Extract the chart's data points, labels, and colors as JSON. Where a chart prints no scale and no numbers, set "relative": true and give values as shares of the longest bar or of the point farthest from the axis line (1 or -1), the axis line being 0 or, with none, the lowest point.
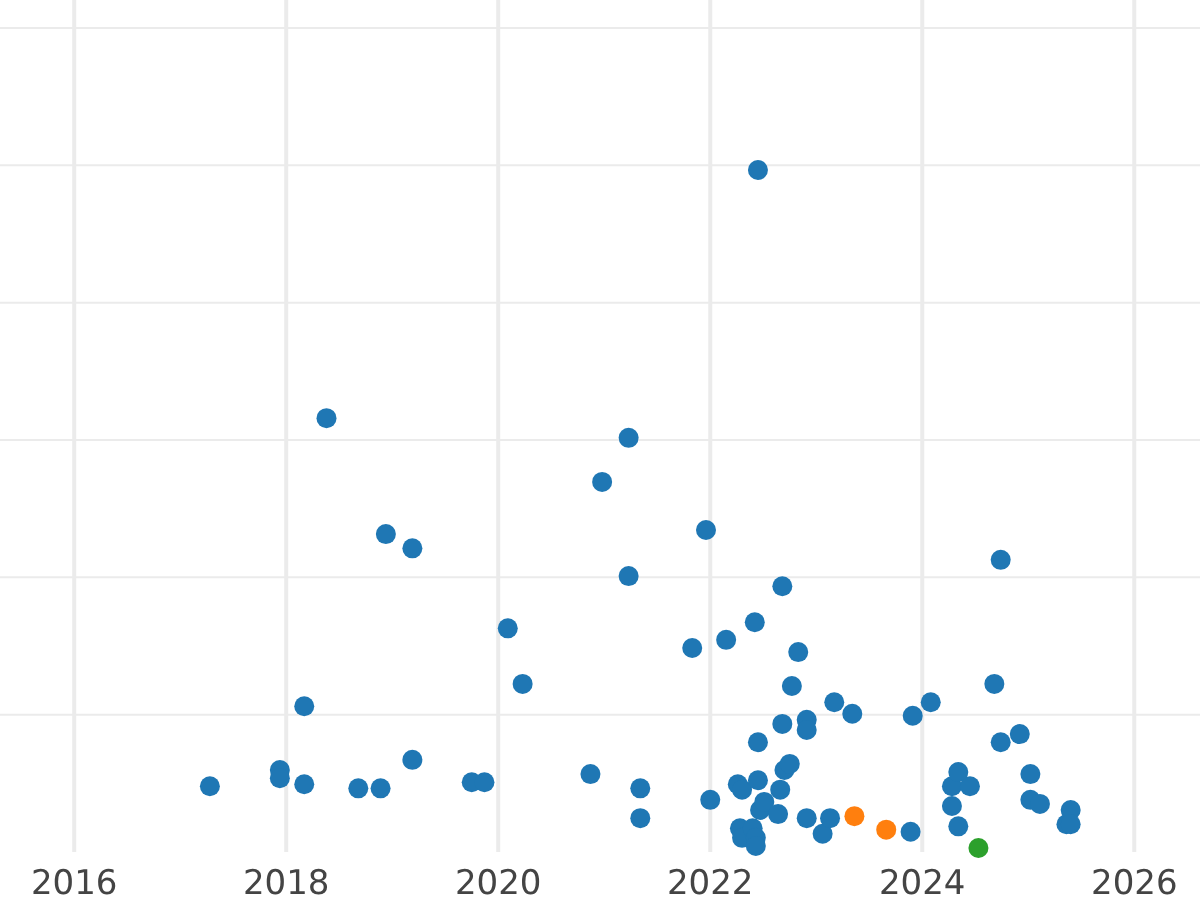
{
  "chart_data": {
    "type": "scatter",
    "relative": true,
    "xlim": [
      2015.3,
      2026.62
    ],
    "xticks": [
      2016,
      2018,
      2020,
      2022,
      2024,
      2026
    ],
    "grid": true,
    "marker": "circle",
    "series": [
      {
        "color": "#1f77b4",
        "x": [
          2017.28,
          2017.94,
          2017.94,
          2018.17,
          2018.17,
          2018.38,
          2018.68,
          2018.89,
          2018.94,
          2019.19,
          2019.19,
          2019.75,
          2019.87,
          2020.09,
          2020.23,
          2020.87,
          2020.98,
          2021.23,
          2021.23,
          2021.34,
          2021.34,
          2021.83,
          2021.96,
          2022.0,
          2022.15,
          2022.26,
          2022.3,
          2022.28,
          2022.3,
          2022.4,
          2022.42,
          2022.45,
          2022.45,
          2022.45,
          2022.43,
          2022.43,
          2022.47,
          2022.51,
          2022.64,
          2022.66,
          2022.68,
          2022.68,
          2022.7,
          2022.75,
          2022.77,
          2022.83,
          2022.91,
          2022.91,
          2022.91,
          2023.06,
          2023.13,
          2023.17,
          2023.34,
          2023.89,
          2023.91,
          2024.08,
          2024.28,
          2024.28,
          2024.34,
          2024.34,
          2024.45,
          2024.68,
          2024.74,
          2024.74,
          2024.92,
          2025.02,
          2025.02,
          2025.11,
          2025.36,
          2025.4,
          2025.4
        ],
        "values": [
          0.091,
          0.115,
          0.103,
          0.094,
          0.209,
          0.634,
          0.088,
          0.088,
          0.463,
          0.442,
          0.13,
          0.097,
          0.097,
          0.324,
          0.242,
          0.109,
          0.54,
          0.605,
          0.401,
          0.088,
          0.044,
          0.295,
          0.469,
          0.071,
          0.307,
          0.094,
          0.086,
          0.029,
          0.015,
          0.029,
          0.333,
          1.0,
          0.156,
          0.1,
          0.015,
          0.003,
          0.056,
          0.068,
          0.05,
          0.086,
          0.386,
          0.183,
          0.115,
          0.124,
          0.239,
          0.289,
          0.189,
          0.174,
          0.044,
          0.021,
          0.044,
          0.215,
          0.198,
          0.024,
          0.195,
          0.215,
          0.091,
          0.062,
          0.112,
          0.032,
          0.091,
          0.242,
          0.156,
          0.425,
          0.168,
          0.109,
          0.071,
          0.065,
          0.035,
          0.056,
          0.035
        ]
      },
      {
        "color": "#ff7f0e",
        "x": [
          2023.36,
          2023.66
        ],
        "values": [
          0.047,
          0.027
        ]
      },
      {
        "color": "#2ca02c",
        "x": [
          2024.53
        ],
        "values": [
          0
        ]
      }
    ]
  }
}
